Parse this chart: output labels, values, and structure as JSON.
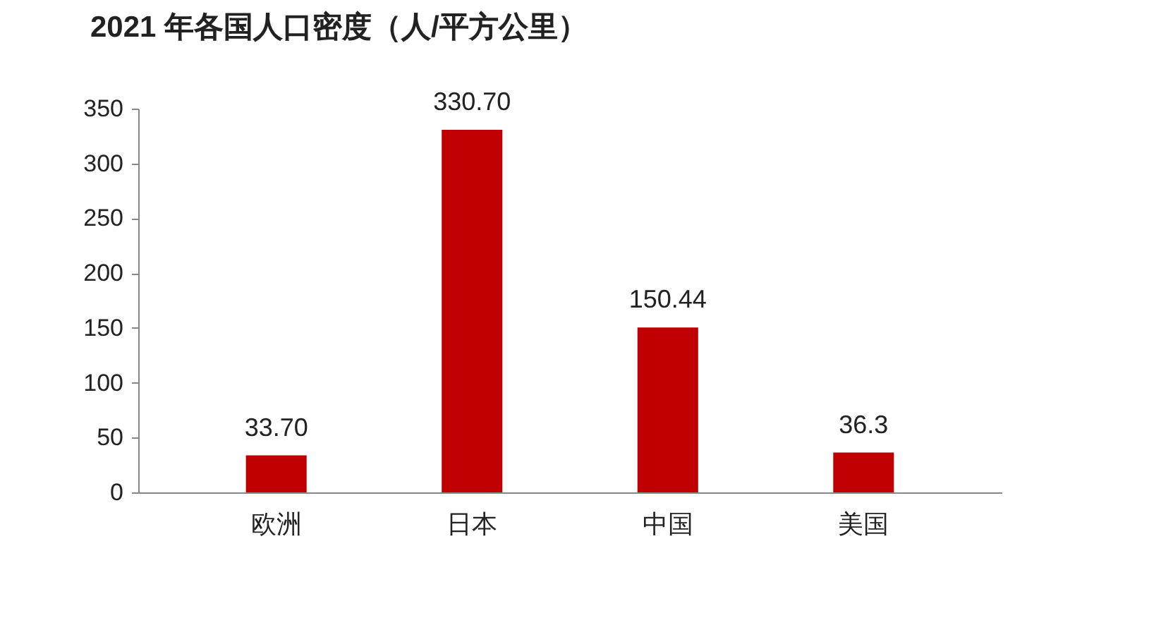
{
  "chart_data": {
    "type": "bar",
    "title": "2021 年各国人口密度（人/平方公里）",
    "categories": [
      "欧洲",
      "日本",
      "中国",
      "美国"
    ],
    "values": [
      33.7,
      330.7,
      150.44,
      36.3
    ],
    "value_labels": [
      "33.70",
      "330.70",
      "150.44",
      "36.3"
    ],
    "color": "#c00000",
    "ylim": [
      0,
      350
    ],
    "yticks": [
      0,
      50,
      100,
      150,
      200,
      250,
      300,
      350
    ],
    "grid": false
  }
}
